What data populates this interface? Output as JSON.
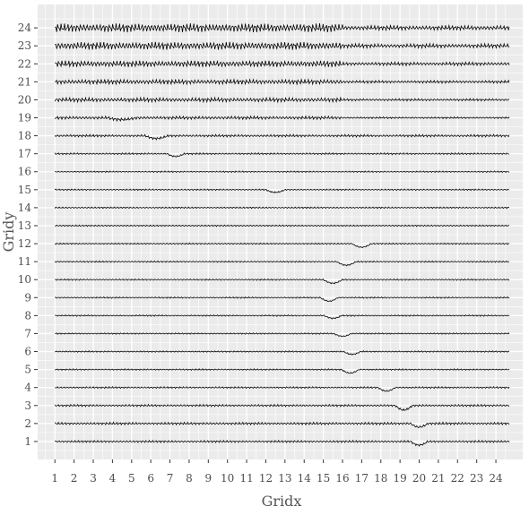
{
  "chart_data": {
    "type": "line",
    "title": "",
    "xlabel": "Gridx",
    "ylabel": "Gridy",
    "x_ticks": [
      "1",
      "2",
      "3",
      "4",
      "5",
      "6",
      "7",
      "8",
      "9",
      "10",
      "11",
      "12",
      "13",
      "14",
      "15",
      "16",
      "17",
      "18",
      "19",
      "20",
      "21",
      "22",
      "23",
      "24"
    ],
    "y_ticks": [
      "1",
      "2",
      "3",
      "4",
      "5",
      "6",
      "7",
      "8",
      "9",
      "10",
      "11",
      "12",
      "13",
      "14",
      "15",
      "16",
      "17",
      "18",
      "19",
      "20",
      "21",
      "22",
      "23",
      "24"
    ],
    "xlim": [
      0.1,
      25.4
    ],
    "ylim": [
      0.0,
      25.3
    ],
    "grid": true,
    "background": "#ebebeb",
    "gridline_color": "#ffffff",
    "line_color": "#000000",
    "rows": [
      {
        "y": 1,
        "dips": [
          {
            "x": 20.0,
            "depth": 0.2,
            "width": 0.9
          }
        ],
        "amplitude": 0.06
      },
      {
        "y": 2,
        "dips": [
          {
            "x": 20.0,
            "depth": 0.2,
            "width": 0.9
          }
        ],
        "amplitude": 0.07
      },
      {
        "y": 3,
        "dips": [
          {
            "x": 19.2,
            "depth": 0.25,
            "width": 0.9
          }
        ],
        "amplitude": 0.06
      },
      {
        "y": 4,
        "dips": [
          {
            "x": 18.3,
            "depth": 0.2,
            "width": 0.9
          }
        ],
        "amplitude": 0.05
      },
      {
        "y": 5,
        "dips": [
          {
            "x": 16.4,
            "depth": 0.2,
            "width": 0.9
          }
        ],
        "amplitude": 0.04
      },
      {
        "y": 6,
        "dips": [
          {
            "x": 16.5,
            "depth": 0.15,
            "width": 0.9
          }
        ],
        "amplitude": 0.04
      },
      {
        "y": 7,
        "dips": [
          {
            "x": 16.0,
            "depth": 0.15,
            "width": 0.9
          }
        ],
        "amplitude": 0.04
      },
      {
        "y": 8,
        "dips": [
          {
            "x": 15.5,
            "depth": 0.15,
            "width": 0.9
          }
        ],
        "amplitude": 0.04
      },
      {
        "y": 9,
        "dips": [
          {
            "x": 15.3,
            "depth": 0.2,
            "width": 0.9
          }
        ],
        "amplitude": 0.04
      },
      {
        "y": 10,
        "dips": [
          {
            "x": 15.5,
            "depth": 0.2,
            "width": 1.0
          }
        ],
        "amplitude": 0.04
      },
      {
        "y": 11,
        "dips": [
          {
            "x": 16.2,
            "depth": 0.2,
            "width": 1.0
          }
        ],
        "amplitude": 0.04
      },
      {
        "y": 12,
        "dips": [
          {
            "x": 17.0,
            "depth": 0.2,
            "width": 1.0
          }
        ],
        "amplitude": 0.04
      },
      {
        "y": 13,
        "dips": [],
        "amplitude": 0.04
      },
      {
        "y": 14,
        "dips": [],
        "amplitude": 0.04
      },
      {
        "y": 15,
        "dips": [
          {
            "x": 12.5,
            "depth": 0.15,
            "width": 1.0
          }
        ],
        "amplitude": 0.04
      },
      {
        "y": 16,
        "dips": [],
        "amplitude": 0.04
      },
      {
        "y": 17,
        "dips": [
          {
            "x": 7.3,
            "depth": 0.15,
            "width": 0.9
          }
        ],
        "amplitude": 0.05
      },
      {
        "y": 18,
        "dips": [
          {
            "x": 6.3,
            "depth": 0.15,
            "width": 1.2
          }
        ],
        "amplitude": 0.07
      },
      {
        "y": 19,
        "dips": [
          {
            "x": 4.5,
            "depth": 0.1,
            "width": 1.5
          }
        ],
        "amplitude": 0.09
      },
      {
        "y": 20,
        "dips": [],
        "amplitude": 0.12
      },
      {
        "y": 21,
        "dips": [],
        "amplitude": 0.14
      },
      {
        "y": 22,
        "dips": [],
        "amplitude": 0.18
      },
      {
        "y": 23,
        "dips": [],
        "amplitude": 0.22
      },
      {
        "y": 24,
        "dips": [],
        "amplitude": 0.25
      }
    ]
  }
}
